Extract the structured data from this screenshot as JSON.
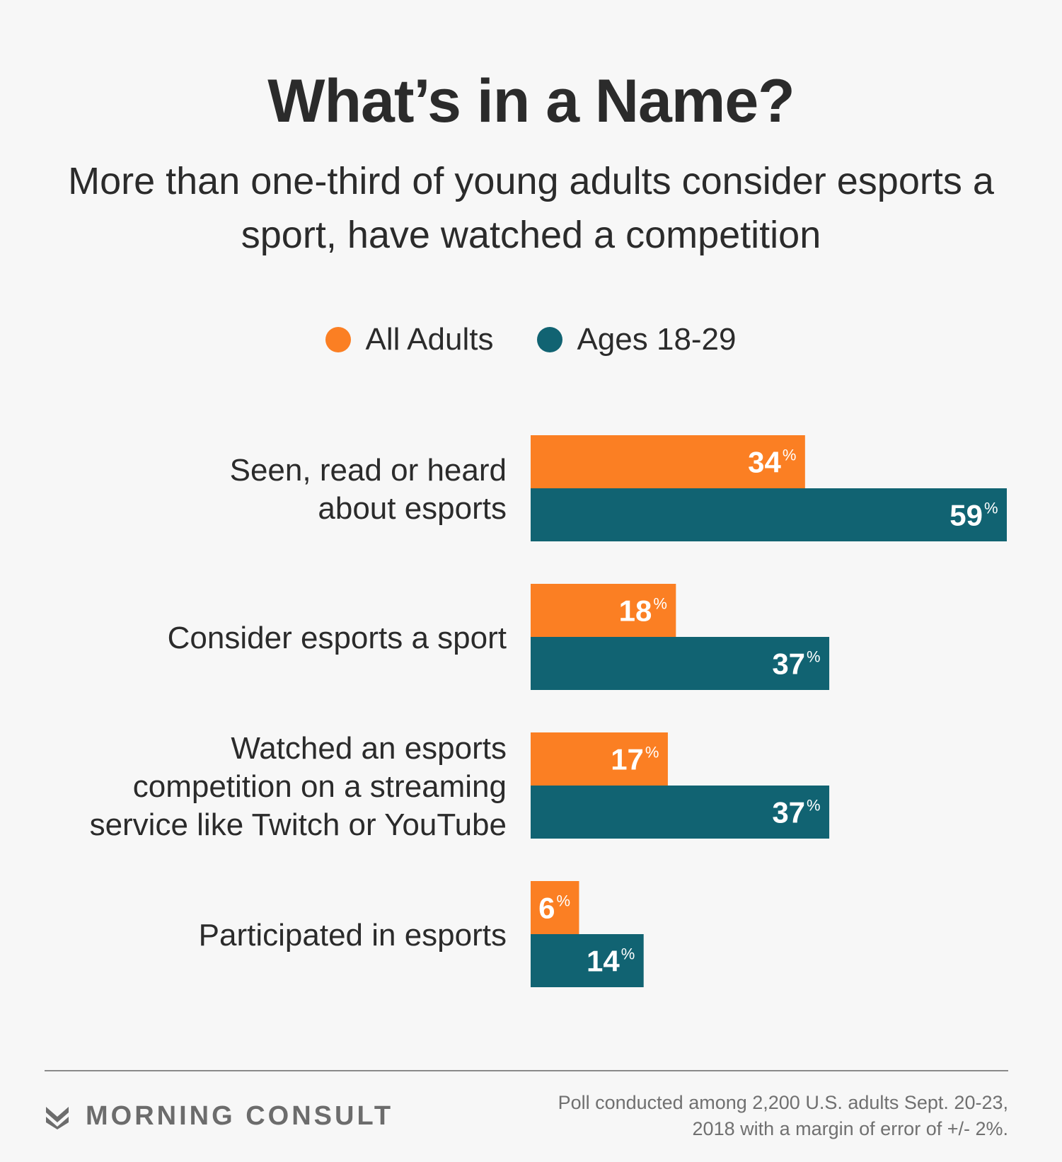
{
  "title": "What’s in a Name?",
  "subtitle": "More than one-third of young adults consider esports a sport, have watched a competition",
  "colors": {
    "all_adults": "#fb7f23",
    "ages_18_29": "#116372"
  },
  "chart_data": {
    "type": "bar",
    "orientation": "horizontal",
    "categories": [
      [
        "Seen, read or heard",
        "about esports"
      ],
      [
        "Consider esports a sport"
      ],
      [
        "Watched an esports",
        "competition on a streaming",
        "service like Twitch or YouTube"
      ],
      [
        "Participated in esports"
      ]
    ],
    "series": [
      {
        "name": "All Adults",
        "color": "#fb7f23",
        "values": [
          34,
          18,
          17,
          6
        ]
      },
      {
        "name": "Ages 18-29",
        "color": "#116372",
        "values": [
          59,
          37,
          37,
          14
        ]
      }
    ],
    "unit": "%",
    "xlim": [
      0,
      59
    ],
    "legend": "top-center",
    "grid": false
  },
  "brand": {
    "name": "MORNING CONSULT",
    "logo_icon": "morning-consult-logo-icon"
  },
  "source": "Poll conducted among 2,200 U.S. adults Sept. 20-23, 2018 with a margin of error of +/- 2%."
}
